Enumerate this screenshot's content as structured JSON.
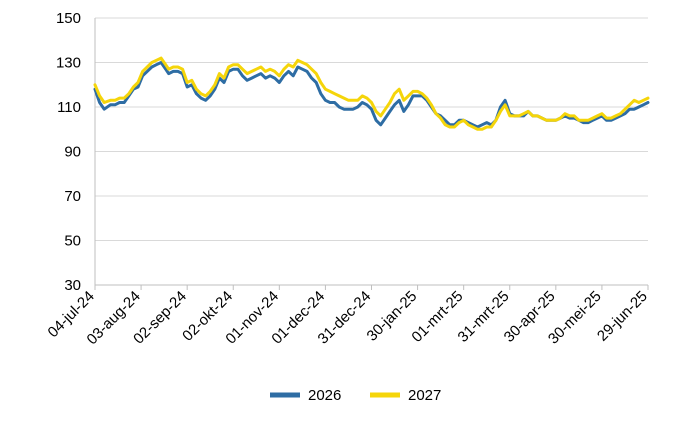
{
  "chart_data": {
    "type": "line",
    "title": "",
    "xlabel": "",
    "ylabel": "",
    "ylim": [
      30,
      150
    ],
    "y_ticks": [
      30,
      50,
      70,
      90,
      110,
      130,
      150
    ],
    "grid": "horizontal",
    "legend_position": "bottom-center",
    "x_tick_labels": [
      "04-jul-24",
      "03-aug-24",
      "02-sep-24",
      "02-okt-24",
      "01-nov-24",
      "01-dec-24",
      "31-dec-24",
      "30-jan-25",
      "01-mrt-25",
      "31-mrt-25",
      "30-apr-25",
      "30-mei-25",
      "29-jun-25"
    ],
    "x_tick_days": [
      0,
      30,
      60,
      90,
      120,
      150,
      180,
      210,
      240,
      270,
      300,
      330,
      360
    ],
    "x_range": [
      0,
      360
    ],
    "series": [
      {
        "name": "2026",
        "color": "#2E6DA4",
        "x": [
          0,
          3,
          6,
          10,
          13,
          16,
          19,
          22,
          25,
          28,
          31,
          34,
          37,
          40,
          43,
          46,
          48,
          51,
          54,
          57,
          60,
          63,
          66,
          69,
          72,
          75,
          78,
          81,
          84,
          87,
          90,
          93,
          96,
          99,
          102,
          105,
          108,
          111,
          114,
          117,
          120,
          123,
          126,
          129,
          132,
          135,
          138,
          141,
          144,
          147,
          150,
          153,
          156,
          159,
          162,
          165,
          168,
          171,
          174,
          177,
          180,
          183,
          186,
          189,
          192,
          195,
          198,
          201,
          204,
          207,
          210,
          213,
          216,
          219,
          222,
          225,
          228,
          231,
          234,
          237,
          240,
          243,
          246,
          249,
          252,
          255,
          258,
          261,
          264,
          267,
          270,
          273,
          276,
          279,
          282,
          285,
          288,
          291,
          294,
          297,
          300,
          303,
          306,
          309,
          312,
          315,
          318,
          321,
          324,
          327,
          330,
          333,
          336,
          339,
          342,
          345,
          348,
          351,
          354,
          357,
          360
        ],
        "values": [
          118,
          112,
          109,
          111,
          111,
          112,
          112,
          115,
          118,
          119,
          124,
          126,
          128,
          129,
          130,
          127,
          125,
          126,
          126,
          125,
          119,
          120,
          116,
          114,
          113,
          115,
          118,
          123,
          121,
          126,
          127,
          127,
          124,
          122,
          123,
          124,
          125,
          123,
          124,
          123,
          121,
          124,
          126,
          124,
          128,
          127,
          126,
          123,
          121,
          116,
          113,
          112,
          112,
          110,
          109,
          109,
          109,
          110,
          112,
          111,
          109,
          104,
          102,
          105,
          108,
          111,
          113,
          108,
          111,
          115,
          115,
          115,
          113,
          110,
          107,
          106,
          104,
          102,
          102,
          104,
          104,
          103,
          102,
          101,
          102,
          103,
          102,
          104,
          110,
          113,
          107,
          106,
          106,
          106,
          108,
          106,
          106,
          105,
          104,
          104,
          104,
          105,
          106,
          105,
          105,
          104,
          103,
          103,
          104,
          105,
          106,
          104,
          104,
          105,
          106,
          107,
          109,
          109,
          110,
          111,
          112
        ]
      },
      {
        "name": "2027",
        "color": "#F5D50A",
        "x": [
          0,
          3,
          6,
          10,
          13,
          16,
          19,
          22,
          25,
          28,
          31,
          34,
          37,
          40,
          43,
          46,
          48,
          51,
          54,
          57,
          60,
          63,
          66,
          69,
          72,
          75,
          78,
          81,
          84,
          87,
          90,
          93,
          96,
          99,
          102,
          105,
          108,
          111,
          114,
          117,
          120,
          123,
          126,
          129,
          132,
          135,
          138,
          141,
          144,
          147,
          150,
          153,
          156,
          159,
          162,
          165,
          168,
          171,
          174,
          177,
          180,
          183,
          186,
          189,
          192,
          195,
          198,
          201,
          204,
          207,
          210,
          213,
          216,
          219,
          222,
          225,
          228,
          231,
          234,
          237,
          240,
          243,
          246,
          249,
          252,
          255,
          258,
          261,
          264,
          267,
          270,
          273,
          276,
          279,
          282,
          285,
          288,
          291,
          294,
          297,
          300,
          303,
          306,
          309,
          312,
          315,
          318,
          321,
          324,
          327,
          330,
          333,
          336,
          339,
          342,
          345,
          348,
          351,
          354,
          357,
          360
        ],
        "values": [
          120,
          115,
          112,
          113,
          113,
          114,
          114,
          116,
          119,
          121,
          126,
          128,
          130,
          131,
          132,
          129,
          127,
          128,
          128,
          127,
          121,
          122,
          118,
          116,
          115,
          117,
          120,
          125,
          123,
          128,
          129,
          129,
          127,
          125,
          126,
          127,
          128,
          126,
          127,
          126,
          124,
          127,
          129,
          128,
          131,
          130,
          129,
          127,
          125,
          121,
          118,
          117,
          116,
          115,
          114,
          113,
          113,
          113,
          115,
          114,
          112,
          108,
          106,
          109,
          112,
          116,
          118,
          113,
          115,
          117,
          117,
          116,
          114,
          111,
          107,
          105,
          102,
          101,
          101,
          103,
          104,
          102,
          101,
          100,
          100,
          101,
          101,
          104,
          108,
          111,
          106,
          106,
          106,
          107,
          108,
          106,
          106,
          105,
          104,
          104,
          104,
          105,
          107,
          106,
          106,
          104,
          104,
          104,
          105,
          106,
          107,
          105,
          105,
          106,
          107,
          109,
          111,
          113,
          112,
          113,
          114
        ]
      }
    ]
  }
}
